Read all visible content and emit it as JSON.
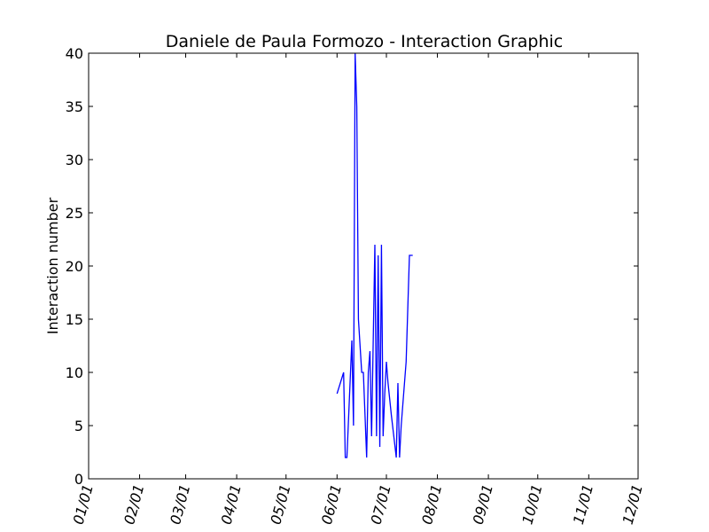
{
  "chart_data": {
    "type": "line",
    "title": "Daniele de Paula Formozo - Interaction Graphic",
    "xlabel": "",
    "ylabel": "Interaction number",
    "xlim": [
      "01/01",
      "12/01"
    ],
    "ylim": [
      0,
      40
    ],
    "grid": false,
    "legend": "none",
    "x_tick_labels": [
      "01/01",
      "02/01",
      "03/01",
      "04/01",
      "05/01",
      "06/01",
      "07/01",
      "08/01",
      "09/01",
      "10/01",
      "11/01",
      "12/01"
    ],
    "y_tick_labels": [
      "0",
      "5",
      "10",
      "15",
      "20",
      "25",
      "30",
      "35",
      "40"
    ],
    "series": [
      {
        "color": "#0000ff",
        "x": [
          "06/01",
          "06/05",
          "06/06",
          "06/07",
          "06/10",
          "06/11",
          "06/12",
          "06/13",
          "06/14",
          "06/16",
          "06/17",
          "06/19",
          "06/20",
          "06/21",
          "06/22",
          "06/24",
          "06/25",
          "06/26",
          "06/27",
          "06/28",
          "06/29",
          "06/30",
          "07/01",
          "07/02",
          "07/04",
          "07/07",
          "07/08",
          "07/09",
          "07/10",
          "07/13",
          "07/15",
          "07/16",
          "07/17"
        ],
        "y": [
          8,
          10,
          2,
          2,
          13,
          5,
          40,
          35,
          15,
          10,
          10,
          2,
          10,
          12,
          4,
          22,
          4,
          21,
          3,
          22,
          4,
          8,
          11,
          9,
          6,
          2,
          9,
          2,
          5,
          11,
          21,
          21,
          21
        ]
      }
    ]
  }
}
